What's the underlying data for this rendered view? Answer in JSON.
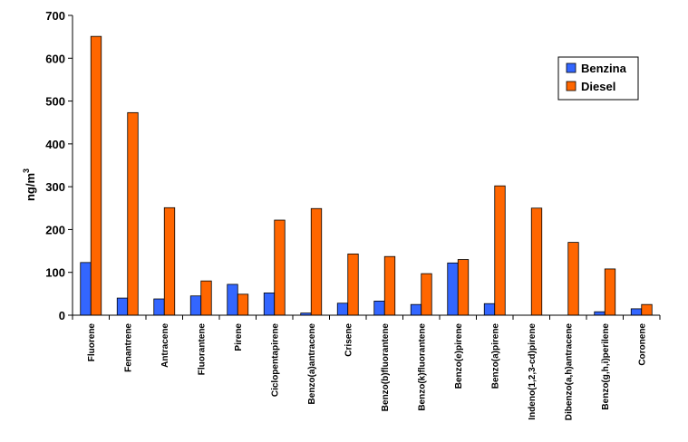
{
  "chart_data": {
    "type": "bar",
    "ylabel": "ng/m",
    "ylabel_superscript": "3",
    "ylim": [
      0,
      700
    ],
    "yticks": [
      0,
      100,
      200,
      300,
      400,
      500,
      600,
      700
    ],
    "grid": false,
    "legend": "top-right",
    "categories": [
      "Fluorene",
      "Fenantrene",
      "Antracene",
      "Fluorantene",
      "Pirene",
      "Ciclopentapirene",
      "Benzo(a)antracene",
      "Crisene",
      "Benzo(b)fluorantene",
      "Benzo(k)fluorantene",
      "Benzo(e)pirene",
      "Benzo(a)pirene",
      "Indeno(1,2,3-cd)pirene",
      "Dibenzo(a,h)antracene",
      "Benzo(g,h,i)perilene",
      "Coronene"
    ],
    "series": [
      {
        "name": "Benzina",
        "color": "#3366ff",
        "values": [
          123,
          40,
          38,
          45,
          72,
          52,
          5,
          28,
          33,
          25,
          122,
          27,
          0,
          0,
          8,
          15
        ]
      },
      {
        "name": "Diesel",
        "color": "#ff6600",
        "values": [
          651,
          473,
          251,
          80,
          49,
          222,
          249,
          143,
          137,
          97,
          130,
          302,
          250,
          170,
          108,
          25
        ]
      }
    ]
  }
}
